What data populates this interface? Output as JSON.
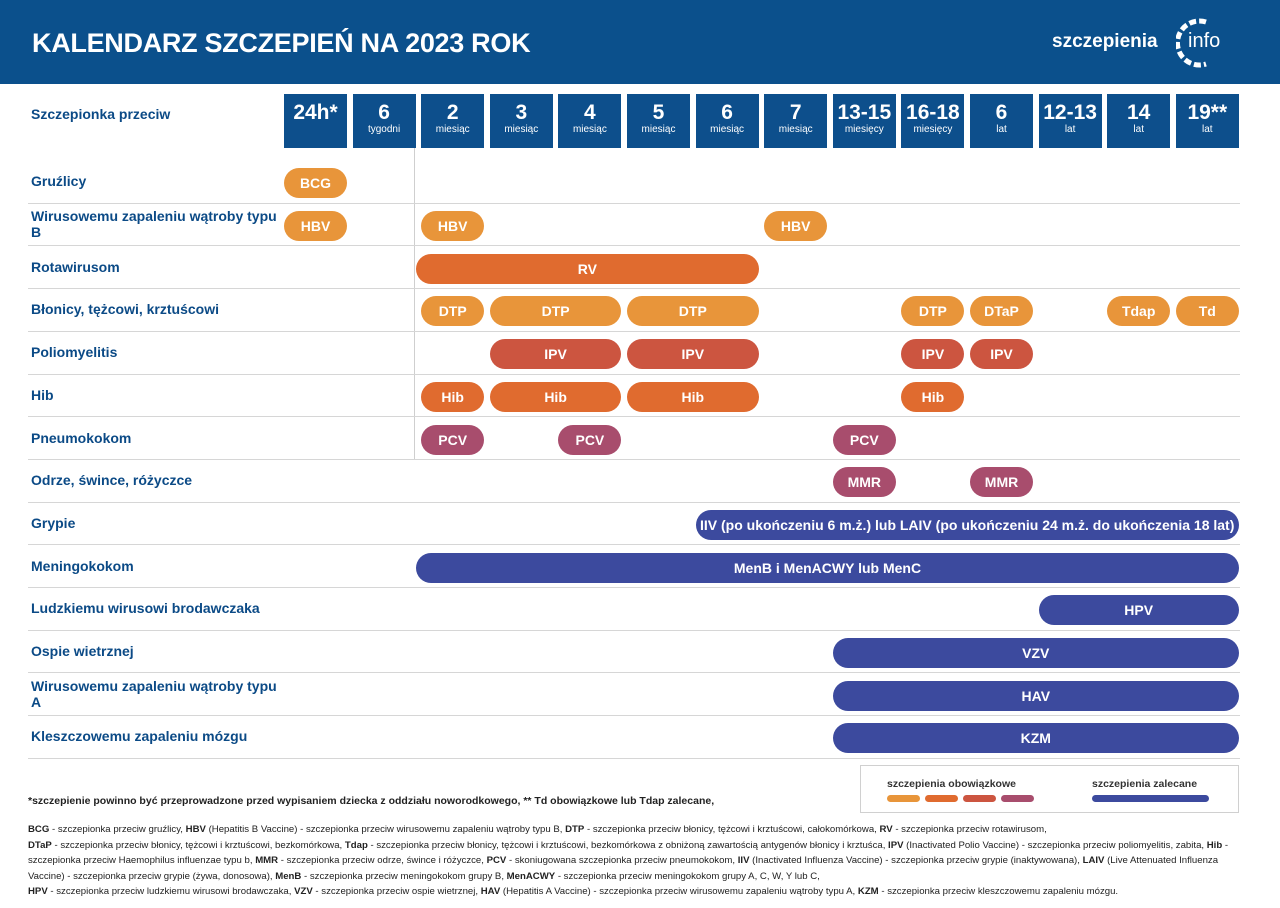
{
  "header": {
    "title": "KALENDARZ SZCZEPIEŃ NA 2023 ROK",
    "logo_text": "szczepienia",
    "logo_suffix": "info"
  },
  "colors": {
    "header": "#0b508c",
    "orange_light": "#e8953a",
    "orange": "#e06b2f",
    "red": "#cc5540",
    "berry": "#a84d6d",
    "blue": "#3c4a9e"
  },
  "table": {
    "row_header": "Szczepionka przeciw",
    "columns": [
      {
        "n": "24h*",
        "u": ""
      },
      {
        "n": "6",
        "u": "tygodni"
      },
      {
        "n": "2",
        "u": "miesiąc"
      },
      {
        "n": "3",
        "u": "miesiąc"
      },
      {
        "n": "4",
        "u": "miesiąc"
      },
      {
        "n": "5",
        "u": "miesiąc"
      },
      {
        "n": "6",
        "u": "miesiąc"
      },
      {
        "n": "7",
        "u": "miesiąc"
      },
      {
        "n": "13-15",
        "u": "miesięcy"
      },
      {
        "n": "16-18",
        "u": "miesięcy"
      },
      {
        "n": "6",
        "u": "lat"
      },
      {
        "n": "12-13",
        "u": "lat"
      },
      {
        "n": "14",
        "u": "lat"
      },
      {
        "n": "19**",
        "u": "lat"
      }
    ],
    "rows": [
      {
        "label": "Gruźlicy",
        "pills": [
          {
            "t": "BCG",
            "from": 0,
            "to": 0,
            "c": "orange_light"
          }
        ]
      },
      {
        "label": "Wirusowemu zapaleniu wątroby typu B",
        "pills": [
          {
            "t": "HBV",
            "from": 0,
            "to": 0,
            "c": "orange_light"
          },
          {
            "t": "HBV",
            "from": 2,
            "to": 2,
            "c": "orange_light"
          },
          {
            "t": "HBV",
            "from": 7,
            "to": 7,
            "c": "orange_light"
          }
        ]
      },
      {
        "label": "Rotawirusom",
        "pills": [
          {
            "t": "RV",
            "from": 2,
            "to": 6,
            "c": "orange"
          }
        ]
      },
      {
        "label": "Błonicy, tężcowi, krztuścowi",
        "pills": [
          {
            "t": "DTP",
            "from": 2,
            "to": 2,
            "c": "orange_light"
          },
          {
            "t": "DTP",
            "from": 3,
            "to": 4,
            "c": "orange_light"
          },
          {
            "t": "DTP",
            "from": 5,
            "to": 6,
            "c": "orange_light"
          },
          {
            "t": "DTP",
            "from": 9,
            "to": 9,
            "c": "orange_light"
          },
          {
            "t": "DTaP",
            "from": 10,
            "to": 10,
            "c": "orange_light"
          },
          {
            "t": "Tdap",
            "from": 12,
            "to": 12,
            "c": "orange_light"
          },
          {
            "t": "Td",
            "from": 13,
            "to": 13,
            "c": "orange_light"
          }
        ]
      },
      {
        "label": "Poliomyelitis",
        "pills": [
          {
            "t": "IPV",
            "from": 3,
            "to": 4,
            "c": "red"
          },
          {
            "t": "IPV",
            "from": 5,
            "to": 6,
            "c": "red"
          },
          {
            "t": "IPV",
            "from": 9,
            "to": 9,
            "c": "red"
          },
          {
            "t": "IPV",
            "from": 10,
            "to": 10,
            "c": "red"
          }
        ]
      },
      {
        "label": "Hib",
        "pills": [
          {
            "t": "Hib",
            "from": 2,
            "to": 2,
            "c": "orange"
          },
          {
            "t": "Hib",
            "from": 3,
            "to": 4,
            "c": "orange"
          },
          {
            "t": "Hib",
            "from": 5,
            "to": 6,
            "c": "orange"
          },
          {
            "t": "Hib",
            "from": 9,
            "to": 9,
            "c": "orange"
          }
        ]
      },
      {
        "label": "Pneumokokom",
        "pills": [
          {
            "t": "PCV",
            "from": 2,
            "to": 2,
            "c": "berry"
          },
          {
            "t": "PCV",
            "from": 4,
            "to": 4,
            "c": "berry"
          },
          {
            "t": "PCV",
            "from": 8,
            "to": 8,
            "c": "berry"
          }
        ]
      },
      {
        "label": "Odrze, śwince, różyczce",
        "pills": [
          {
            "t": "MMR",
            "from": 8,
            "to": 8,
            "c": "berry"
          },
          {
            "t": "MMR",
            "from": 10,
            "to": 10,
            "c": "berry"
          }
        ]
      },
      {
        "label": "Grypie",
        "pills": [
          {
            "t": "IIV (po ukończeniu 6 m.ż.) lub LAIV (po ukończeniu 24 m.ż. do ukończenia 18 lat)",
            "from": 6,
            "to": 13,
            "c": "blue"
          }
        ]
      },
      {
        "label": "Meningokokom",
        "pills": [
          {
            "t": "MenB i MenACWY lub MenC",
            "from": 2,
            "to": 13,
            "c": "blue"
          }
        ]
      },
      {
        "label": "Ludzkiemu wirusowi brodawczaka",
        "pills": [
          {
            "t": "HPV",
            "from": 11,
            "to": 13,
            "c": "blue"
          }
        ]
      },
      {
        "label": "Ospie wietrznej",
        "pills": [
          {
            "t": "VZV",
            "from": 8,
            "to": 13,
            "c": "blue"
          }
        ]
      },
      {
        "label": "Wirusowemu zapaleniu wątroby typu A",
        "pills": [
          {
            "t": "HAV",
            "from": 8,
            "to": 13,
            "c": "blue"
          }
        ]
      },
      {
        "label": "Kleszczowemu zapaleniu mózgu",
        "pills": [
          {
            "t": "KZM",
            "from": 8,
            "to": 13,
            "c": "blue"
          }
        ]
      }
    ]
  },
  "legend": {
    "mandatory": "szczepienia obowiązkowe",
    "recommended": "szczepienia zalecane"
  },
  "footnote": "*szczepienie powinno być przeprowadzone przed wypisaniem dziecka z oddziału noworodkowego, ** Td obowiązkowe lub Tdap zalecane,",
  "glossary": [
    {
      "term": "BCG",
      "desc": " - szczepionka przeciw gruźlicy, "
    },
    {
      "term": "HBV",
      "desc": " (Hepatitis B Vaccine) - szczepionka przeciw wirusowemu zapaleniu wątroby typu B, "
    },
    {
      "term": "DTP",
      "desc": " - szczepionka przeciw błonicy, tężcowi i krztuścowi, całokomórkowa, "
    },
    {
      "term": "RV",
      "desc": " - szczepionka przeciw rotawirusom,"
    },
    {
      "term": "DTaP",
      "desc": " - szczepionka przeciw błonicy, tężcowi i krztuścowi, bezkomórkowa, "
    },
    {
      "term": "Tdap",
      "desc": " - szczepionka przeciw błonicy, tężcowi i krztuścowi, bezkomórkowa z obniżoną zawartością antygenów błonicy i krztuśca, "
    },
    {
      "term": "IPV",
      "desc": " (Inactivated Polio Vaccine) - szczepionka przeciw poliomyelitis, zabita, "
    },
    {
      "term": "Hib",
      "desc": " - szczepionka przeciw Haemophilus influenzae typu b, "
    },
    {
      "term": "MMR",
      "desc": " - szczepionka przeciw odrze, śwince i różyczce, "
    },
    {
      "term": "PCV",
      "desc": " - skoniugowana szczepionka przeciw pneumokokom,  "
    },
    {
      "term": "IIV",
      "desc": " (Inactivated Influenza Vaccine) - szczepionka przeciw grypie (inaktywowana), "
    },
    {
      "term": "LAIV",
      "desc": " (Live Attenuated Influenza Vaccine) - szczepionka przeciw grypie (żywa, donosowa), "
    },
    {
      "term": "MenB",
      "desc": " - szczepionka przeciw meningokokom grupy B, "
    },
    {
      "term": "MenACWY",
      "desc": " - szczepionka przeciw meningokokom grupy A, C, W, Y lub C,"
    },
    {
      "term": "HPV",
      "desc": " - szczepionka przeciw ludzkiemu wirusowi brodawczaka, "
    },
    {
      "term": "VZV",
      "desc": " - szczepionka przeciw ospie wietrznej, "
    },
    {
      "term": "HAV",
      "desc": " (Hepatitis A Vaccine) - szczepionka przeciw wirusowemu zapaleniu wątroby typu A, "
    },
    {
      "term": "KZM",
      "desc": " - szczepionka przeciw kleszczowemu zapaleniu mózgu."
    }
  ]
}
